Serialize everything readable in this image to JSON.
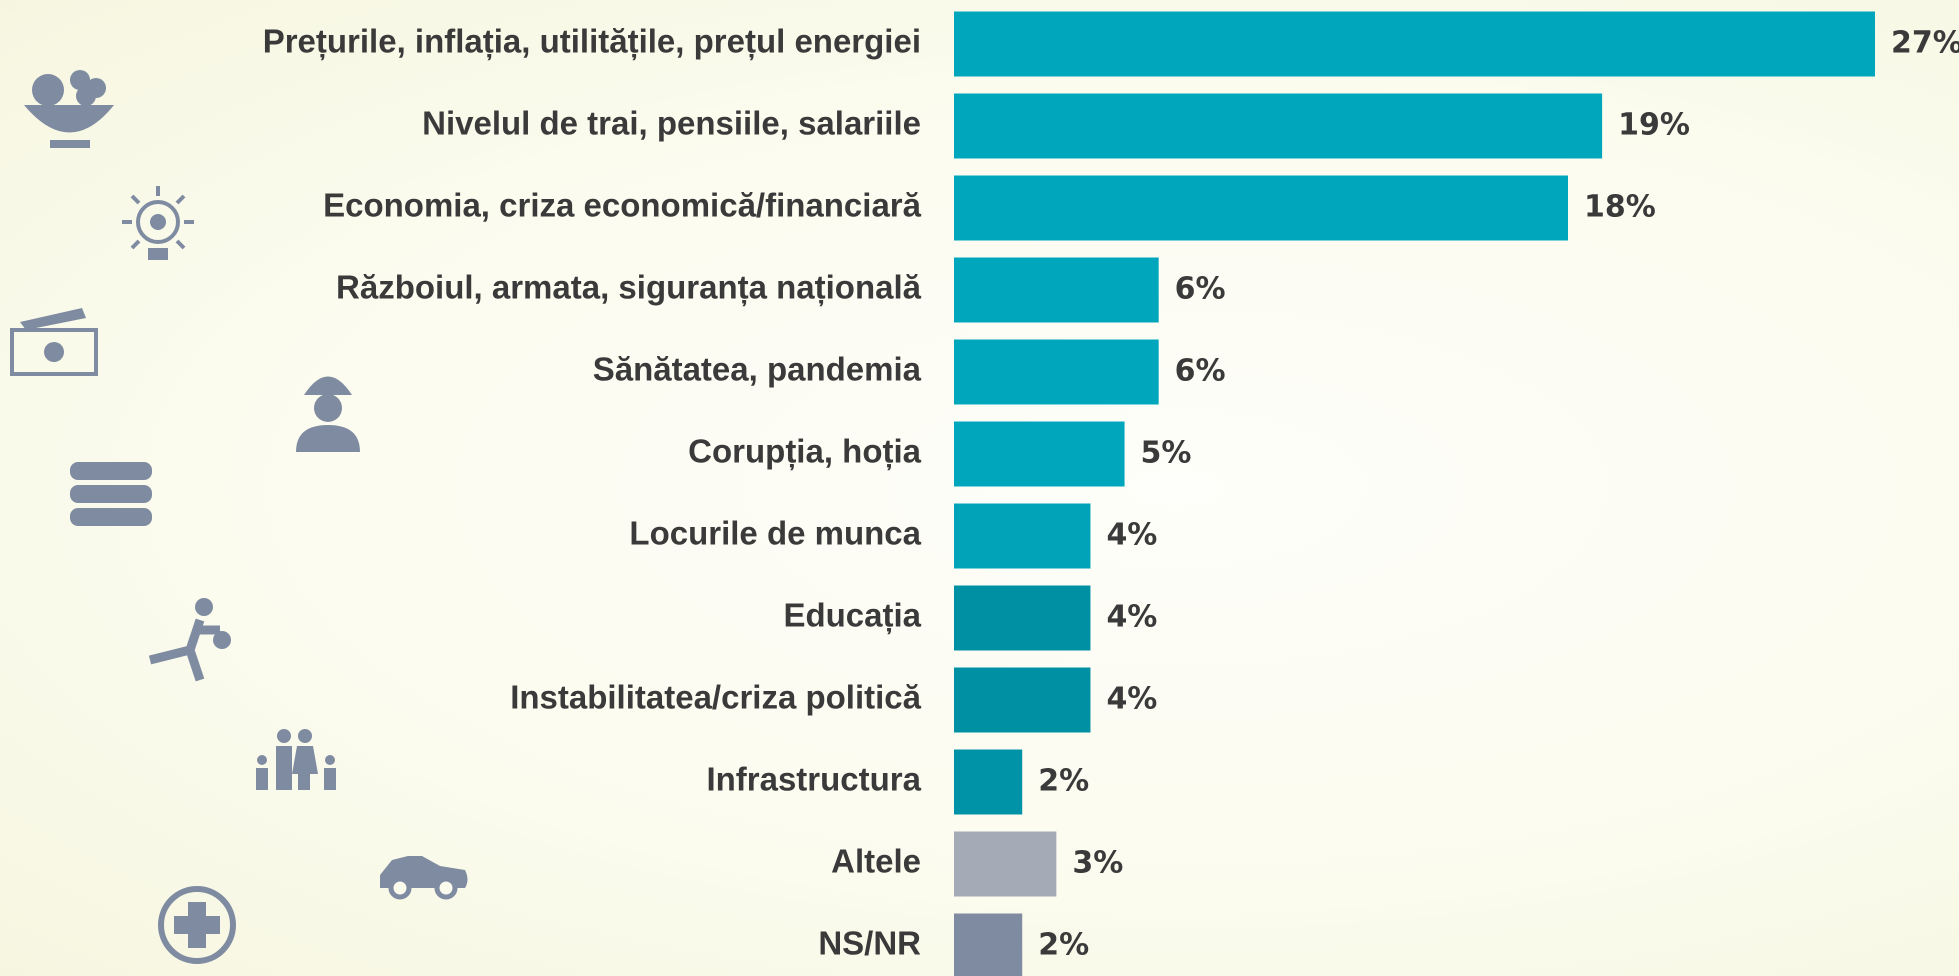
{
  "chart_data": {
    "type": "barh",
    "categories": [
      "Prețurile, inflația, utilitățile, prețul energiei",
      "Nivelul de trai, pensiile, salariile",
      "Economia, criza economică/financiară",
      "Războiul, armata, siguranța națională",
      "Sănătatea, pandemia",
      "Corupția, hoția",
      "Locurile de munca",
      "Educația",
      "Instabilitatea/criza politică",
      "Infrastructura",
      "Altele",
      "NS/NR"
    ],
    "values": [
      27,
      19,
      18,
      6,
      6,
      5,
      4,
      4,
      4,
      2,
      3,
      2
    ],
    "value_labels": [
      "27%",
      "19%",
      "18%",
      "6%",
      "6%",
      "5%",
      "4%",
      "4%",
      "4%",
      "2%",
      "3%",
      "2%"
    ],
    "colors": [
      "#00a6bc",
      "#00a6bc",
      "#00a6bc",
      "#00a6bc",
      "#00a6bc",
      "#00a6bc",
      "#00a3b8",
      "#0090a4",
      "#0090a4",
      "#0093a7",
      "#a4abb7",
      "#7f8ba0"
    ]
  }
}
